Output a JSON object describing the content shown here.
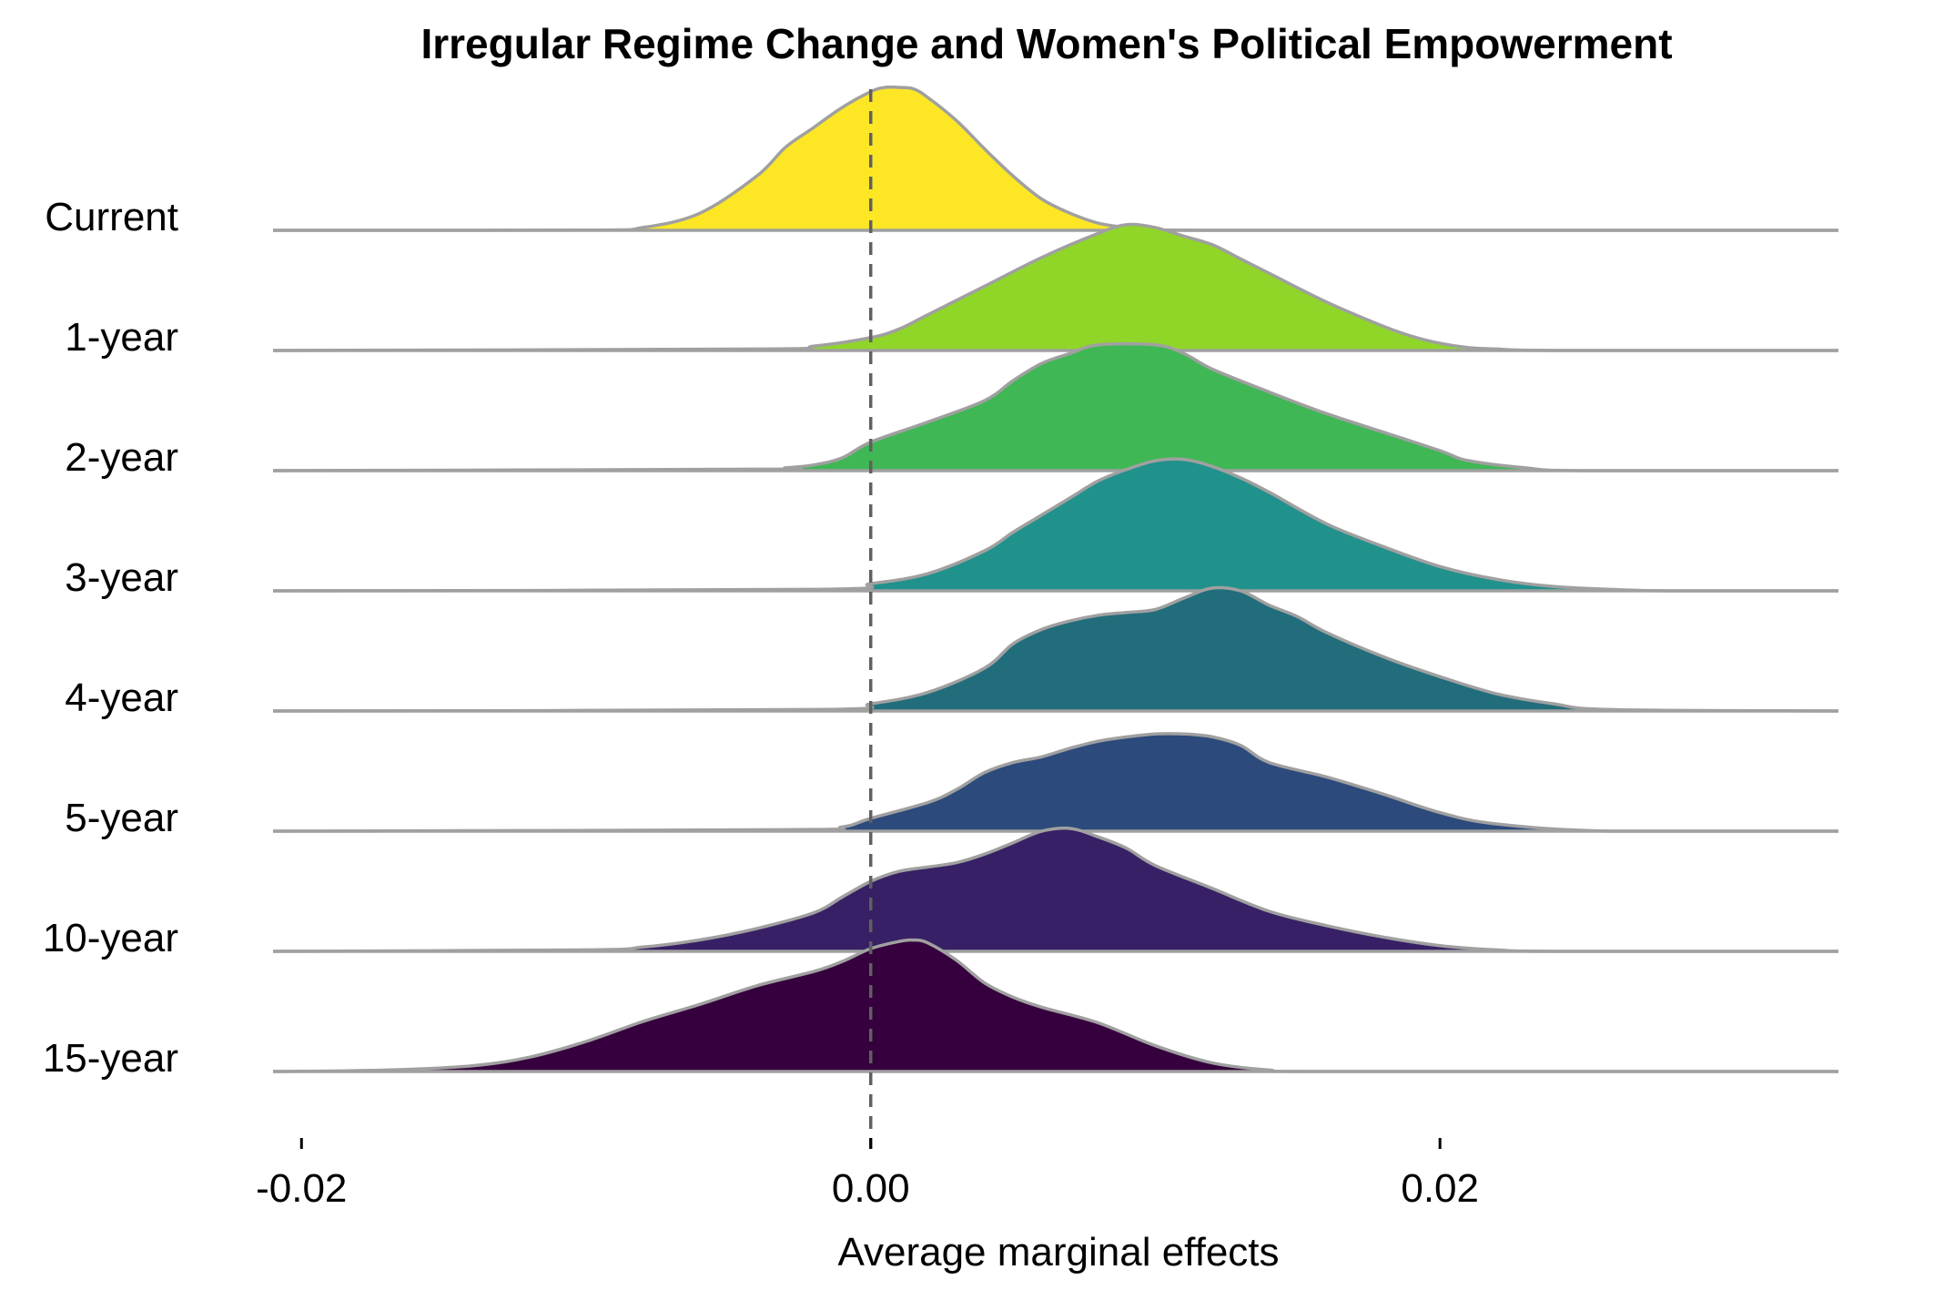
{
  "chart_data": {
    "type": "ridgeline",
    "title": "Irregular Regime Change and Women's Political Empowerment",
    "xlabel": "Average marginal effects",
    "ylabel": "",
    "xlim": [
      -0.021,
      0.034
    ],
    "xticks": [
      -0.02,
      0.0,
      0.02
    ],
    "xtick_labels": [
      "-0.02",
      "0.00",
      "0.02"
    ],
    "reference_line_x": 0.0,
    "reference_line_style": "dashed",
    "grid": false,
    "legend": "none",
    "baseline_color": "#a0a0a0",
    "series": [
      {
        "name": "Current",
        "color": "#fde725",
        "x": [
          -0.021,
          -0.01,
          -0.008,
          -0.006,
          -0.004,
          -0.003,
          -0.002,
          -0.001,
          0,
          0.0005,
          0.001,
          0.0015,
          0.002,
          0.003,
          0.004,
          0.005,
          0.006,
          0.007,
          0.008,
          0.009,
          0.01,
          0.012,
          0.034
        ],
        "density": [
          0,
          0.001,
          0.02,
          0.12,
          0.38,
          0.58,
          0.72,
          0.86,
          0.97,
          1.0,
          1.0,
          0.99,
          0.93,
          0.77,
          0.57,
          0.38,
          0.22,
          0.12,
          0.05,
          0.02,
          0.01,
          0,
          0
        ]
      },
      {
        "name": "1-year",
        "color": "#8fd629",
        "x": [
          -0.021,
          -0.004,
          -0.002,
          0,
          0.001,
          0.002,
          0.004,
          0.006,
          0.008,
          0.009,
          0.01,
          0.011,
          0.012,
          0.013,
          0.014,
          0.016,
          0.018,
          0.019,
          0.02,
          0.021,
          0.022,
          0.024,
          0.034
        ],
        "density": [
          0,
          0.01,
          0.03,
          0.09,
          0.15,
          0.25,
          0.45,
          0.65,
          0.82,
          0.88,
          0.86,
          0.8,
          0.74,
          0.64,
          0.54,
          0.34,
          0.17,
          0.1,
          0.05,
          0.02,
          0.01,
          0,
          0
        ]
      },
      {
        "name": "2-year",
        "color": "#3fb755",
        "x": [
          -0.021,
          -0.004,
          -0.003,
          -0.002,
          -0.001,
          0,
          0.002,
          0.004,
          0.005,
          0.006,
          0.007,
          0.008,
          0.01,
          0.011,
          0.012,
          0.014,
          0.016,
          0.018,
          0.02,
          0.021,
          0.023,
          0.025,
          0.034
        ],
        "density": [
          0,
          0.01,
          0.02,
          0.04,
          0.09,
          0.2,
          0.34,
          0.49,
          0.63,
          0.75,
          0.82,
          0.88,
          0.88,
          0.82,
          0.71,
          0.55,
          0.4,
          0.27,
          0.14,
          0.07,
          0.02,
          0,
          0
        ]
      },
      {
        "name": "3-year",
        "color": "#21918c",
        "x": [
          -0.021,
          -0.002,
          0,
          0.002,
          0.004,
          0.005,
          0.006,
          0.007,
          0.008,
          0.009,
          0.01,
          0.011,
          0.012,
          0.013,
          0.014,
          0.016,
          0.018,
          0.02,
          0.022,
          0.024,
          0.026,
          0.028,
          0.034
        ],
        "density": [
          0,
          0.01,
          0.05,
          0.12,
          0.28,
          0.41,
          0.53,
          0.65,
          0.77,
          0.85,
          0.91,
          0.92,
          0.87,
          0.79,
          0.69,
          0.47,
          0.31,
          0.17,
          0.08,
          0.03,
          0.01,
          0,
          0
        ]
      },
      {
        "name": "4-year",
        "color": "#226d7b",
        "x": [
          -0.021,
          -0.002,
          0,
          0.002,
          0.004,
          0.005,
          0.006,
          0.007,
          0.008,
          0.009,
          0.01,
          0.011,
          0.012,
          0.013,
          0.014,
          0.015,
          0.016,
          0.018,
          0.02,
          0.022,
          0.024,
          0.026,
          0.034
        ],
        "density": [
          0,
          0.01,
          0.05,
          0.13,
          0.3,
          0.47,
          0.57,
          0.63,
          0.67,
          0.69,
          0.71,
          0.79,
          0.86,
          0.84,
          0.74,
          0.66,
          0.55,
          0.38,
          0.24,
          0.12,
          0.05,
          0.01,
          0
        ]
      },
      {
        "name": "5-year",
        "color": "#2c4a7b",
        "x": [
          -0.021,
          -0.003,
          -0.001,
          0,
          0.002,
          0.003,
          0.004,
          0.005,
          0.006,
          0.007,
          0.008,
          0.009,
          0.01,
          0.011,
          0.012,
          0.013,
          0.014,
          0.016,
          0.018,
          0.02,
          0.022,
          0.026,
          0.034
        ],
        "density": [
          0,
          0.01,
          0.03,
          0.09,
          0.2,
          0.29,
          0.41,
          0.48,
          0.52,
          0.58,
          0.63,
          0.66,
          0.68,
          0.68,
          0.66,
          0.6,
          0.48,
          0.38,
          0.26,
          0.13,
          0.05,
          0,
          0
        ]
      },
      {
        "name": "10-year",
        "color": "#372065",
        "x": [
          -0.021,
          -0.01,
          -0.008,
          -0.006,
          -0.004,
          -0.002,
          -0.001,
          0,
          0.001,
          0.002,
          0.003,
          0.004,
          0.005,
          0.006,
          0.007,
          0.008,
          0.009,
          0.01,
          0.012,
          0.014,
          0.016,
          0.018,
          0.02,
          0.022,
          0.024,
          0.034
        ],
        "density": [
          0,
          0.01,
          0.03,
          0.08,
          0.16,
          0.27,
          0.38,
          0.49,
          0.56,
          0.59,
          0.62,
          0.68,
          0.76,
          0.84,
          0.86,
          0.8,
          0.72,
          0.6,
          0.44,
          0.28,
          0.18,
          0.1,
          0.04,
          0.01,
          0,
          0
        ]
      },
      {
        "name": "15-year",
        "color": "#35003d",
        "x": [
          -0.021,
          -0.017,
          -0.014,
          -0.012,
          -0.01,
          -0.008,
          -0.006,
          -0.004,
          -0.002,
          -0.001,
          0,
          0.001,
          0.0015,
          0.002,
          0.003,
          0.004,
          0.005,
          0.006,
          0.008,
          0.01,
          0.012,
          0.014,
          0.016,
          0.034
        ],
        "density": [
          0,
          0.01,
          0.04,
          0.1,
          0.21,
          0.35,
          0.47,
          0.6,
          0.7,
          0.77,
          0.86,
          0.91,
          0.92,
          0.9,
          0.78,
          0.62,
          0.52,
          0.45,
          0.34,
          0.18,
          0.06,
          0.01,
          0,
          0
        ]
      }
    ]
  }
}
